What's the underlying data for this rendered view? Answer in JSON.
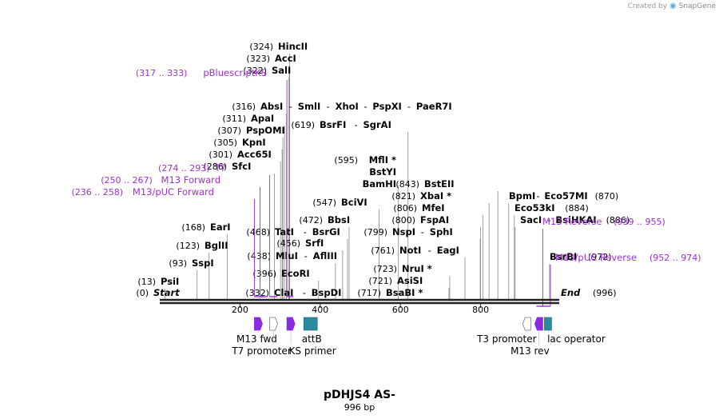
{
  "credit": {
    "prefix": "Created by",
    "brand": "SnapGene",
    "logo_icon": "snapgene-logo-icon"
  },
  "plasmid": {
    "name": "pDHJS4 AS-",
    "size_label": "996 bp",
    "length": 996
  },
  "ruler": {
    "ticks": [
      200,
      400,
      600,
      800
    ]
  },
  "colors": {
    "primer": "#a02cdb",
    "line": "#888888",
    "backbone": "#222222",
    "feature_purple": "#8a2be2",
    "feature_teal": "#2e8aa0"
  },
  "sites": [
    {
      "id": "start",
      "pos": 0,
      "num": "(0)",
      "names": [
        {
          "t": "Start",
          "italic": true
        }
      ]
    },
    {
      "id": "psii",
      "pos": 13,
      "num": "(13)",
      "names": [
        {
          "t": "PsiI"
        }
      ]
    },
    {
      "id": "sspi",
      "pos": 93,
      "num": "(93)",
      "names": [
        {
          "t": "SspI"
        }
      ]
    },
    {
      "id": "bglii",
      "pos": 123,
      "num": "(123)",
      "names": [
        {
          "t": "BglII"
        }
      ]
    },
    {
      "id": "eari",
      "pos": 168,
      "num": "(168)",
      "names": [
        {
          "t": "EarI"
        }
      ]
    },
    {
      "id": "sfci",
      "pos": 286,
      "num": "(286)",
      "names": [
        {
          "t": "SfcI"
        }
      ]
    },
    {
      "id": "acc65i",
      "pos": 301,
      "num": "(301)",
      "names": [
        {
          "t": "Acc65I"
        }
      ]
    },
    {
      "id": "kpni",
      "pos": 305,
      "num": "(305)",
      "names": [
        {
          "t": "KpnI"
        }
      ]
    },
    {
      "id": "psponi",
      "pos": 307,
      "num": "(307)",
      "names": [
        {
          "t": "PspOMI"
        }
      ]
    },
    {
      "id": "apai",
      "pos": 311,
      "num": "(311)",
      "names": [
        {
          "t": "ApaI"
        }
      ]
    },
    {
      "id": "absi",
      "pos": 316,
      "num": "(316)",
      "names": [
        {
          "t": "AbsI"
        },
        {
          "t": "SmlI"
        },
        {
          "t": "XhoI"
        },
        {
          "t": "PspXI"
        },
        {
          "t": "PaeR7I"
        }
      ]
    },
    {
      "id": "sali",
      "pos": 322,
      "num": "(322)",
      "names": [
        {
          "t": "SalI"
        }
      ]
    },
    {
      "id": "acci",
      "pos": 323,
      "num": "(323)",
      "names": [
        {
          "t": "AccI"
        }
      ]
    },
    {
      "id": "hincii",
      "pos": 324,
      "num": "(324)",
      "names": [
        {
          "t": "HincII"
        }
      ]
    },
    {
      "id": "clai",
      "pos": 332,
      "num": "(332)",
      "names": [
        {
          "t": "ClaI"
        },
        {
          "t": "BspDI"
        }
      ]
    },
    {
      "id": "ecori",
      "pos": 396,
      "num": "(396)",
      "names": [
        {
          "t": "EcoRI"
        }
      ]
    },
    {
      "id": "mlui",
      "pos": 438,
      "num": "(438)",
      "names": [
        {
          "t": "MluI"
        },
        {
          "t": "AflIII"
        }
      ]
    },
    {
      "id": "srfi",
      "pos": 456,
      "num": "(456)",
      "names": [
        {
          "t": "SrfI"
        }
      ]
    },
    {
      "id": "tati",
      "pos": 468,
      "num": "(468)",
      "names": [
        {
          "t": "TatI"
        },
        {
          "t": "BsrGI"
        }
      ]
    },
    {
      "id": "bbsi",
      "pos": 472,
      "num": "(472)",
      "names": [
        {
          "t": "BbsI"
        }
      ]
    },
    {
      "id": "bcivi",
      "pos": 547,
      "num": "(547)",
      "names": [
        {
          "t": "BciVI"
        }
      ]
    },
    {
      "id": "mfli",
      "pos": 595,
      "num": "(595)",
      "names": [
        {
          "t": "MflI *"
        },
        {
          "t": "BstYI"
        },
        {
          "t": "BamHI"
        }
      ]
    },
    {
      "id": "bsrfi",
      "pos": 619,
      "num": "(619)",
      "names": [
        {
          "t": "BsrFI"
        },
        {
          "t": "SgrAI"
        }
      ]
    },
    {
      "id": "bsabi",
      "pos": 717,
      "num": "(717)",
      "names": [
        {
          "t": "BsaBI *"
        }
      ]
    },
    {
      "id": "asisi",
      "pos": 721,
      "num": "(721)",
      "names": [
        {
          "t": "AsiSI"
        }
      ]
    },
    {
      "id": "nrui",
      "pos": 723,
      "num": "(723)",
      "names": [
        {
          "t": "NruI *"
        }
      ]
    },
    {
      "id": "noti",
      "pos": 761,
      "num": "(761)",
      "names": [
        {
          "t": "NotI"
        },
        {
          "t": "EagI"
        }
      ]
    },
    {
      "id": "nspi",
      "pos": 799,
      "num": "(799)",
      "names": [
        {
          "t": "NspI"
        },
        {
          "t": "SphI"
        }
      ]
    },
    {
      "id": "fspai",
      "pos": 800,
      "num": "(800)",
      "names": [
        {
          "t": "FspAI"
        }
      ]
    },
    {
      "id": "mfei",
      "pos": 806,
      "num": "(806)",
      "names": [
        {
          "t": "MfeI"
        }
      ]
    },
    {
      "id": "xbai",
      "pos": 821,
      "num": "(821)",
      "names": [
        {
          "t": "XbaI *"
        }
      ]
    },
    {
      "id": "bsteii",
      "pos": 843,
      "num": "(843)",
      "names": [
        {
          "t": "BstEII"
        }
      ]
    },
    {
      "id": "bpmi",
      "pos": 870,
      "num": "(870)",
      "names": [
        {
          "t": "BpmI"
        },
        {
          "t": "Eco57MI"
        }
      ]
    },
    {
      "id": "eco53ki",
      "pos": 884,
      "num": "(884)",
      "names": [
        {
          "t": "Eco53kI"
        }
      ]
    },
    {
      "id": "saci",
      "pos": 886,
      "num": "(886)",
      "names": [
        {
          "t": "SacI"
        },
        {
          "t": "BsiHKAI"
        }
      ]
    },
    {
      "id": "bsrbi",
      "pos": 972,
      "num": "(972)",
      "names": [
        {
          "t": "BsrBI"
        }
      ]
    },
    {
      "id": "end",
      "pos": 996,
      "num": "(996)",
      "names": [
        {
          "t": "End",
          "italic": true
        }
      ]
    }
  ],
  "primers": [
    {
      "id": "m13-puc-forward",
      "label": "M13/pUC Forward",
      "range": "(236 .. 258)",
      "start": 236,
      "end": 258
    },
    {
      "id": "m13-forward",
      "label": "M13 Forward",
      "range": "(250 .. 267)",
      "start": 250,
      "end": 267
    },
    {
      "id": "t7",
      "label": "T7",
      "range": "(274 .. 293)",
      "start": 274,
      "end": 293
    },
    {
      "id": "pbluescriptks",
      "label": "pBluescriptKS",
      "range": "(317 .. 333)",
      "start": 317,
      "end": 333
    },
    {
      "id": "m13-reverse",
      "label": "M13 Reverse",
      "range": "(939 .. 955)",
      "start": 939,
      "end": 955
    },
    {
      "id": "m13-puc-reverse",
      "label": "M13/pUC Reverse",
      "range": "(952 .. 974)",
      "start": 952,
      "end": 974
    }
  ],
  "features": [
    {
      "id": "m13-fwd",
      "label": "M13 fwd",
      "start": 236,
      "end": 253,
      "dir": "fwd",
      "type": "primer_bind"
    },
    {
      "id": "t7-promoter",
      "label": "T7 promoter",
      "start": 274,
      "end": 293,
      "dir": "fwd",
      "type": "promoter"
    },
    {
      "id": "ks-primer",
      "label": "KS primer",
      "start": 317,
      "end": 333,
      "dir": "fwd",
      "type": "primer_bind"
    },
    {
      "id": "attb",
      "label": "attB",
      "start": 359,
      "end": 391,
      "dir": "none",
      "type": "misc"
    },
    {
      "id": "t3-promoter",
      "label": "T3 promoter",
      "start": 905,
      "end": 924,
      "dir": "rev",
      "type": "promoter"
    },
    {
      "id": "m13-rev",
      "label": "M13 rev",
      "start": 935,
      "end": 951,
      "dir": "rev",
      "type": "primer_bind"
    },
    {
      "id": "lac-operator",
      "label": "lac operator",
      "start": 959,
      "end": 975,
      "dir": "none",
      "type": "misc"
    }
  ]
}
